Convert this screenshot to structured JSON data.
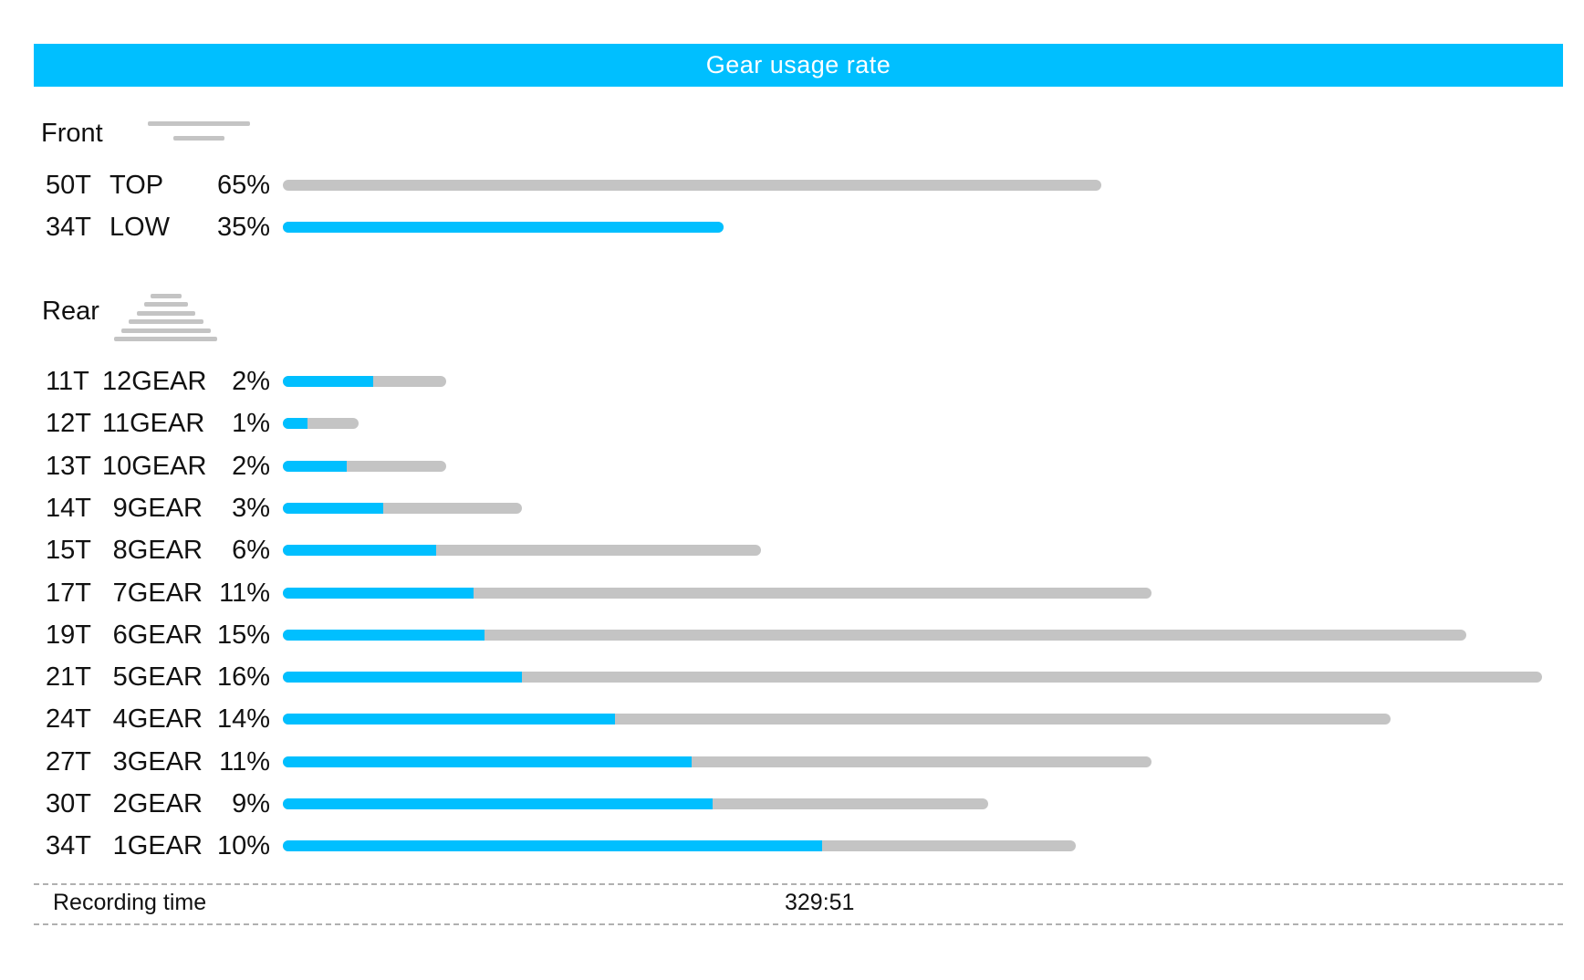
{
  "title": "Gear usage rate",
  "colors": {
    "accent": "#00bfff",
    "track": "#c4c4c4",
    "text": "#111111"
  },
  "front": {
    "label": "Front",
    "icon": "front-chainring-icon",
    "rows": [
      {
        "tooth": "50T",
        "position": "TOP",
        "percent": "65%",
        "track": 0.65,
        "fill": 0.0
      },
      {
        "tooth": "34T",
        "position": "LOW",
        "percent": "35%",
        "track": 0.35,
        "fill": 1.0
      }
    ]
  },
  "rear": {
    "label": "Rear",
    "icon": "rear-cassette-icon",
    "rows": [
      {
        "tooth": "11T",
        "position": "12GEAR",
        "percent": "2%",
        "track": 0.13,
        "fill": 0.55
      },
      {
        "tooth": "12T",
        "position": "11GEAR",
        "percent": "1%",
        "track": 0.06,
        "fill": 0.33
      },
      {
        "tooth": "13T",
        "position": "10GEAR",
        "percent": "2%",
        "track": 0.13,
        "fill": 0.39
      },
      {
        "tooth": "14T",
        "position": "9GEAR",
        "percent": "3%",
        "track": 0.19,
        "fill": 0.42
      },
      {
        "tooth": "15T",
        "position": "8GEAR",
        "percent": "6%",
        "track": 0.38,
        "fill": 0.32
      },
      {
        "tooth": "17T",
        "position": "7GEAR",
        "percent": "11%",
        "track": 0.69,
        "fill": 0.22
      },
      {
        "tooth": "19T",
        "position": "6GEAR",
        "percent": "15%",
        "track": 0.94,
        "fill": 0.17
      },
      {
        "tooth": "21T",
        "position": "5GEAR",
        "percent": "16%",
        "track": 1.0,
        "fill": 0.19
      },
      {
        "tooth": "24T",
        "position": "4GEAR",
        "percent": "14%",
        "track": 0.88,
        "fill": 0.3
      },
      {
        "tooth": "27T",
        "position": "3GEAR",
        "percent": "11%",
        "track": 0.69,
        "fill": 0.47
      },
      {
        "tooth": "30T",
        "position": "2GEAR",
        "percent": "9%",
        "track": 0.56,
        "fill": 0.61
      },
      {
        "tooth": "34T",
        "position": "1GEAR",
        "percent": "10%",
        "track": 0.63,
        "fill": 0.68
      }
    ]
  },
  "footer": {
    "label": "Recording time",
    "value": "329:51"
  },
  "chart_data": {
    "type": "bar",
    "title": "Gear usage rate",
    "groups": [
      {
        "name": "Front",
        "categories": [
          "50T TOP",
          "34T LOW"
        ],
        "values": [
          65,
          35
        ]
      },
      {
        "name": "Rear",
        "categories": [
          "11T 12GEAR",
          "12T 11GEAR",
          "13T 10GEAR",
          "14T 9GEAR",
          "15T 8GEAR",
          "17T 7GEAR",
          "19T 6GEAR",
          "21T 5GEAR",
          "24T 4GEAR",
          "27T 3GEAR",
          "30T 2GEAR",
          "34T 1GEAR"
        ],
        "values": [
          2,
          1,
          2,
          3,
          6,
          11,
          15,
          16,
          14,
          11,
          9,
          10
        ]
      }
    ],
    "unit": "%",
    "orientation": "horizontal",
    "grid": false,
    "legend": "none"
  }
}
